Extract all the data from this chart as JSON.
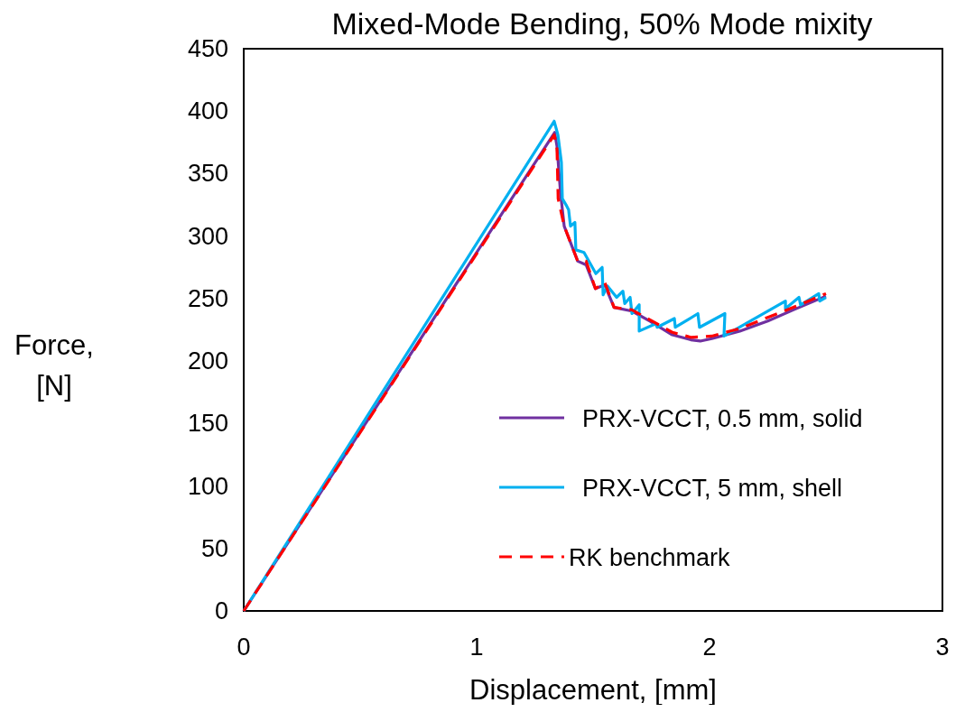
{
  "chart_data": {
    "type": "line",
    "title": "Mixed-Mode Bending, 50% Mode mixity",
    "xlabel": "Displacement, [mm]",
    "ylabel": "Force, [N]",
    "xlim": [
      0,
      3
    ],
    "xticks": [
      0,
      1,
      2,
      3
    ],
    "ylim": [
      0,
      450
    ],
    "yticks": [
      0,
      50,
      100,
      150,
      200,
      250,
      300,
      350,
      400,
      450
    ],
    "grid": false,
    "legend": "right",
    "line_style": "solid",
    "series": [
      {
        "name": "PRX-VCCT, 0.5 mm, solid",
        "color": "#7030a0",
        "x": [
          0,
          1.335,
          1.345,
          1.36,
          1.376,
          1.434,
          1.47,
          1.51,
          1.55,
          1.59,
          1.667,
          1.744,
          1.84,
          1.92,
          1.96,
          2.01,
          2.13,
          2.25,
          2.36,
          2.5
        ],
        "values": [
          0,
          383,
          372,
          335,
          308,
          280,
          277,
          258,
          261,
          243,
          240,
          232,
          221,
          217,
          216,
          218,
          224,
          232,
          241,
          252
        ]
      },
      {
        "name": "PRX-VCCT, 5 mm, shell",
        "color": "#00b0f0",
        "x": [
          0,
          1.333,
          1.349,
          1.364,
          1.368,
          1.384,
          1.395,
          1.403,
          1.422,
          1.426,
          1.461,
          1.512,
          1.539,
          1.543,
          1.562,
          1.601,
          1.628,
          1.636,
          1.659,
          1.667,
          1.698,
          1.698,
          1.771,
          1.775,
          1.849,
          1.853,
          1.95,
          1.957,
          2.066,
          2.062,
          2.326,
          2.326,
          2.384,
          2.391,
          2.469,
          2.473,
          2.5
        ],
        "values": [
          0,
          392,
          381,
          359,
          330,
          325,
          321,
          308,
          311,
          289,
          287,
          270,
          275,
          253,
          260,
          251,
          256,
          246,
          251,
          238,
          245,
          224,
          230,
          227,
          234,
          227,
          238,
          227,
          238,
          220,
          248,
          242,
          251,
          245,
          254,
          248,
          251
        ]
      },
      {
        "name": "RK benchmark",
        "color": "#ff0000",
        "line_style": "dashed",
        "x": [
          0,
          1.333,
          1.345,
          1.35,
          1.376,
          1.434,
          1.47,
          1.51,
          1.55,
          1.59,
          1.667,
          1.744,
          1.84,
          1.92,
          2.01,
          2.13,
          2.25,
          2.36,
          2.5
        ],
        "values": [
          0,
          381,
          370,
          330,
          308,
          280,
          280,
          258,
          263,
          243,
          241,
          233,
          223,
          219,
          220,
          226,
          235,
          243,
          254
        ]
      }
    ]
  }
}
